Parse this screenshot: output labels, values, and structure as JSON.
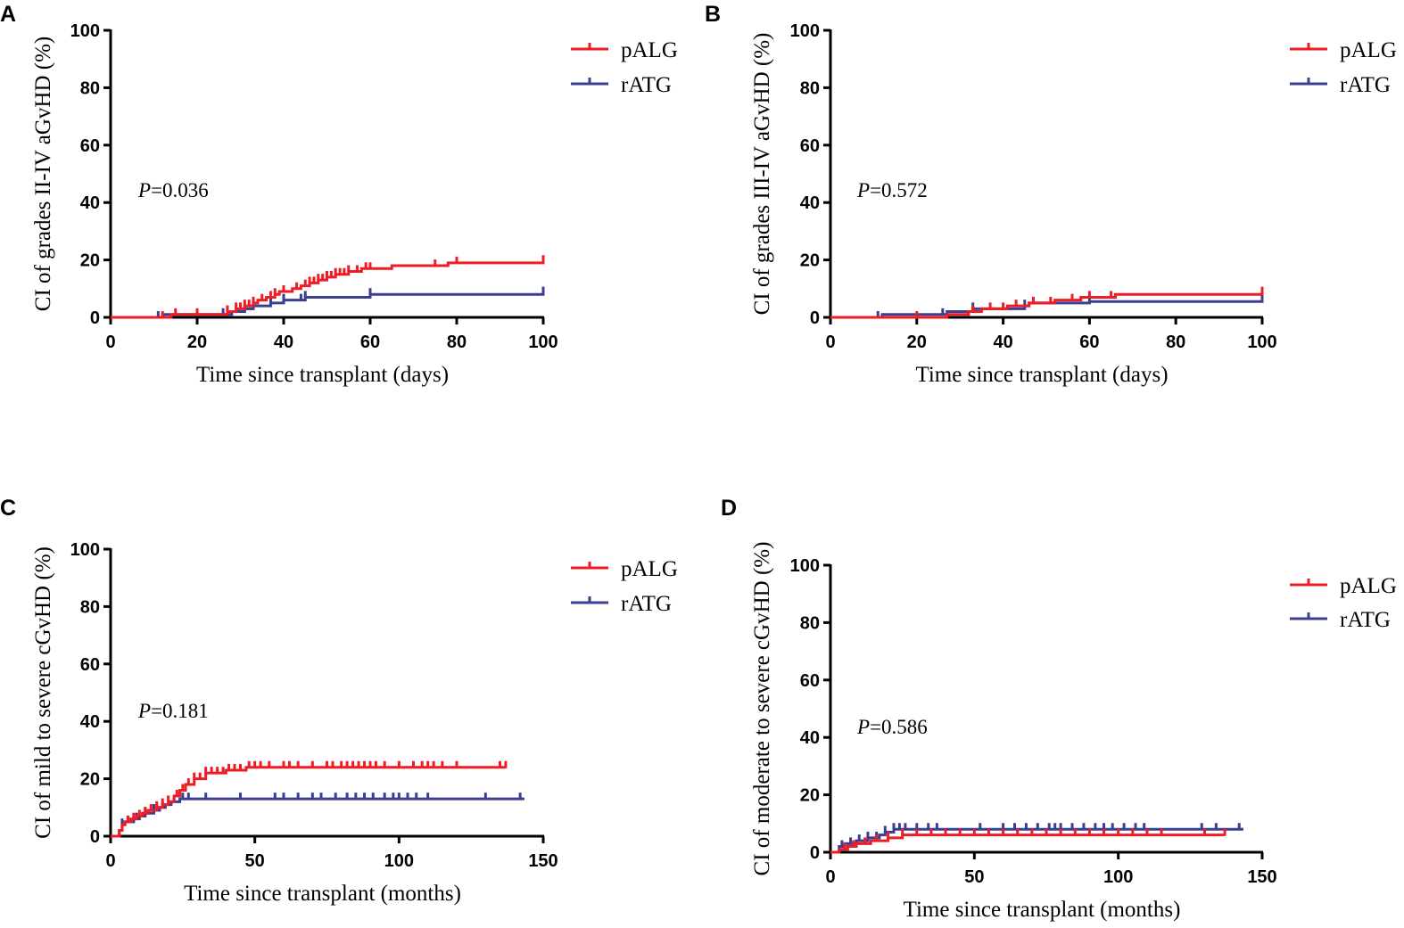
{
  "figure": {
    "colors": {
      "pALG": "#ee1c25",
      "rATG": "#3b3f91",
      "axis": "#000000"
    }
  },
  "chart_data": [
    {
      "panel": "A",
      "type": "line",
      "step": true,
      "xlabel": "Time since transplant (days)",
      "ylabel": "CI of grades II-IV aGvHD (%)",
      "xlim": [
        0,
        100
      ],
      "ylim": [
        0,
        100
      ],
      "xticks": [
        0,
        20,
        40,
        60,
        80,
        100
      ],
      "yticks": [
        0,
        20,
        40,
        60,
        80,
        100
      ],
      "p_prefix": "P",
      "p_value": "=0.036",
      "legend_position": "top-right",
      "series": [
        {
          "name": "pALG",
          "color": "#ee1c25",
          "points": [
            [
              0,
              0
            ],
            [
              12,
              0
            ],
            [
              14,
              1
            ],
            [
              26,
              1
            ],
            [
              27,
              2
            ],
            [
              29,
              3
            ],
            [
              31,
              4
            ],
            [
              33,
              5
            ],
            [
              34,
              6
            ],
            [
              36,
              7
            ],
            [
              38,
              8
            ],
            [
              39,
              9
            ],
            [
              42,
              10
            ],
            [
              44,
              11
            ],
            [
              46,
              12
            ],
            [
              48,
              13
            ],
            [
              50,
              14
            ],
            [
              52,
              15
            ],
            [
              55,
              16
            ],
            [
              58,
              17
            ],
            [
              65,
              18
            ],
            [
              78,
              19
            ],
            [
              100,
              19.5
            ]
          ],
          "censored": [
            12,
            15,
            20,
            27,
            29,
            30,
            31,
            32,
            33,
            35,
            37,
            38,
            40,
            43,
            45,
            46,
            47,
            48,
            49,
            50,
            51,
            52,
            53,
            54,
            55,
            57,
            59,
            60,
            75,
            80,
            100
          ]
        },
        {
          "name": "rATG",
          "color": "#3b3f91",
          "points": [
            [
              0,
              0
            ],
            [
              11,
              0
            ],
            [
              12,
              1
            ],
            [
              27,
              1
            ],
            [
              28,
              2
            ],
            [
              31,
              3
            ],
            [
              33,
              4
            ],
            [
              37,
              5
            ],
            [
              40,
              6
            ],
            [
              45,
              7
            ],
            [
              60,
              8
            ],
            [
              100,
              8.5
            ]
          ],
          "censored": [
            11,
            26,
            33,
            37,
            40,
            44,
            45,
            60,
            100
          ]
        }
      ]
    },
    {
      "panel": "B",
      "type": "line",
      "step": true,
      "xlabel": "Time since transplant (days)",
      "ylabel": "CI of grades III-IV aGvHD (%)",
      "xlim": [
        0,
        100
      ],
      "ylim": [
        0,
        100
      ],
      "xticks": [
        0,
        20,
        40,
        60,
        80,
        100
      ],
      "yticks": [
        0,
        20,
        40,
        60,
        80,
        100
      ],
      "p_prefix": "P",
      "p_value": "=0.572",
      "legend_position": "top-right",
      "series": [
        {
          "name": "pALG",
          "color": "#ee1c25",
          "points": [
            [
              0,
              0
            ],
            [
              26,
              0
            ],
            [
              27,
              1
            ],
            [
              32,
              2
            ],
            [
              35,
              3
            ],
            [
              41,
              4
            ],
            [
              46,
              5
            ],
            [
              52,
              6
            ],
            [
              58,
              7
            ],
            [
              66,
              8
            ],
            [
              100,
              8.5
            ]
          ],
          "censored": [
            20,
            33,
            37,
            40,
            43,
            47,
            51,
            56,
            60,
            65,
            100
          ]
        },
        {
          "name": "rATG",
          "color": "#3b3f91",
          "points": [
            [
              0,
              0
            ],
            [
              11,
              0
            ],
            [
              12,
              1
            ],
            [
              26,
              1
            ],
            [
              27,
              2
            ],
            [
              33,
              3
            ],
            [
              45,
              4
            ],
            [
              46,
              5
            ],
            [
              60,
              5.5
            ],
            [
              100,
              6
            ]
          ],
          "censored": [
            11,
            26,
            33,
            45,
            60,
            100
          ]
        }
      ]
    },
    {
      "panel": "C",
      "type": "line",
      "step": true,
      "xlabel": "Time since transplant (months)",
      "ylabel": "CI of mild to severe cGvHD (%)",
      "xlim": [
        0,
        150
      ],
      "ylim": [
        0,
        100
      ],
      "xticks": [
        0,
        50,
        100,
        150
      ],
      "yticks": [
        0,
        20,
        40,
        60,
        80,
        100
      ],
      "p_prefix": "P",
      "p_value": "=0.181",
      "legend_position": "top-right",
      "series": [
        {
          "name": "pALG",
          "color": "#ee1c25",
          "points": [
            [
              0,
              0
            ],
            [
              3,
              2
            ],
            [
              4,
              4
            ],
            [
              5,
              5
            ],
            [
              7,
              6
            ],
            [
              9,
              7
            ],
            [
              11,
              8
            ],
            [
              13,
              9
            ],
            [
              16,
              10
            ],
            [
              18,
              11
            ],
            [
              20,
              12
            ],
            [
              22,
              14
            ],
            [
              24,
              16
            ],
            [
              26,
              18
            ],
            [
              29,
              20
            ],
            [
              33,
              22
            ],
            [
              40,
              23
            ],
            [
              47,
              24
            ],
            [
              137,
              24
            ]
          ],
          "censored": [
            6,
            8,
            10,
            12,
            14,
            16,
            18,
            20,
            23,
            25,
            27,
            29,
            31,
            33,
            35,
            37,
            39,
            41,
            43,
            45,
            48,
            50,
            52,
            55,
            60,
            62,
            65,
            70,
            75,
            77,
            80,
            82,
            84,
            86,
            88,
            90,
            92,
            95,
            100,
            105,
            108,
            110,
            112,
            115,
            120,
            135,
            137
          ]
        },
        {
          "name": "rATG",
          "color": "#3b3f91",
          "points": [
            [
              0,
              0
            ],
            [
              3,
              2
            ],
            [
              4,
              4
            ],
            [
              5,
              5
            ],
            [
              8,
              6
            ],
            [
              10,
              7
            ],
            [
              12,
              8
            ],
            [
              15,
              9
            ],
            [
              17,
              10
            ],
            [
              19,
              11
            ],
            [
              21,
              12
            ],
            [
              24,
              13
            ],
            [
              143,
              13.5
            ]
          ],
          "censored": [
            4,
            6,
            9,
            12,
            15,
            18,
            22,
            25,
            27,
            33,
            45,
            57,
            60,
            65,
            70,
            73,
            78,
            82,
            85,
            88,
            91,
            95,
            98,
            100,
            103,
            106,
            110,
            130,
            142
          ]
        }
      ]
    },
    {
      "panel": "D",
      "type": "line",
      "step": true,
      "xlabel": "Time since transplant (months)",
      "ylabel": "CI of moderate to severe cGvHD (%)",
      "xlim": [
        0,
        150
      ],
      "ylim": [
        0,
        100
      ],
      "xticks": [
        0,
        50,
        100,
        150
      ],
      "yticks": [
        0,
        20,
        40,
        60,
        80,
        100
      ],
      "p_prefix": "P",
      "p_value": "=0.586",
      "legend_position": "top-right",
      "series": [
        {
          "name": "pALG",
          "color": "#ee1c25",
          "points": [
            [
              0,
              0
            ],
            [
              3,
              1
            ],
            [
              6,
              2
            ],
            [
              9,
              3
            ],
            [
              14,
              4
            ],
            [
              20,
              5
            ],
            [
              25,
              6
            ],
            [
              137,
              6
            ]
          ],
          "censored": [
            5,
            8,
            12,
            16,
            20,
            25,
            30,
            35,
            40,
            45,
            50,
            55,
            60,
            65,
            70,
            75,
            80,
            85,
            90,
            95,
            100,
            105,
            110,
            115,
            130,
            137
          ]
        },
        {
          "name": "rATG",
          "color": "#3b3f91",
          "points": [
            [
              0,
              0
            ],
            [
              3,
              2
            ],
            [
              5,
              3
            ],
            [
              9,
              4
            ],
            [
              13,
              5
            ],
            [
              17,
              6
            ],
            [
              19,
              7
            ],
            [
              22,
              8
            ],
            [
              143,
              8.5
            ]
          ],
          "censored": [
            4,
            7,
            10,
            13,
            16,
            19,
            22,
            24,
            26,
            30,
            34,
            37,
            52,
            60,
            64,
            68,
            72,
            76,
            78,
            80,
            84,
            88,
            92,
            95,
            98,
            102,
            106,
            109,
            129,
            134,
            142
          ]
        }
      ]
    }
  ]
}
